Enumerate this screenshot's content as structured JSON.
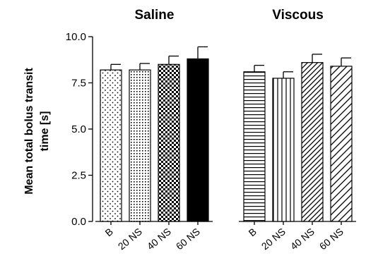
{
  "chart_data": {
    "type": "bar",
    "ylabel": "Mean total bolus transit time [s]",
    "ylabel_lines": [
      "Mean total bolus transit",
      "time [s]"
    ],
    "ylim": [
      0,
      10
    ],
    "yticks": [
      "0.0",
      "2.5",
      "5.0",
      "7.5",
      "10.0"
    ],
    "grid": false,
    "groups": [
      {
        "title": "Saline",
        "categories": [
          "B",
          "20 NS",
          "40 NS",
          "60 NS"
        ],
        "values": [
          8.2,
          8.2,
          8.5,
          8.8
        ],
        "errors": [
          0.3,
          0.35,
          0.45,
          0.65
        ],
        "patterns": [
          "dots-sparse",
          "dots-dense",
          "checker",
          "solid"
        ]
      },
      {
        "title": "Viscous",
        "categories": [
          "B",
          "20 NS",
          "40 NS",
          "60 NS"
        ],
        "values": [
          8.1,
          7.75,
          8.6,
          8.4
        ],
        "errors": [
          0.35,
          0.35,
          0.45,
          0.45
        ],
        "patterns": [
          "hlines",
          "vlines",
          "diag-dense",
          "diag-sparse"
        ]
      }
    ]
  }
}
